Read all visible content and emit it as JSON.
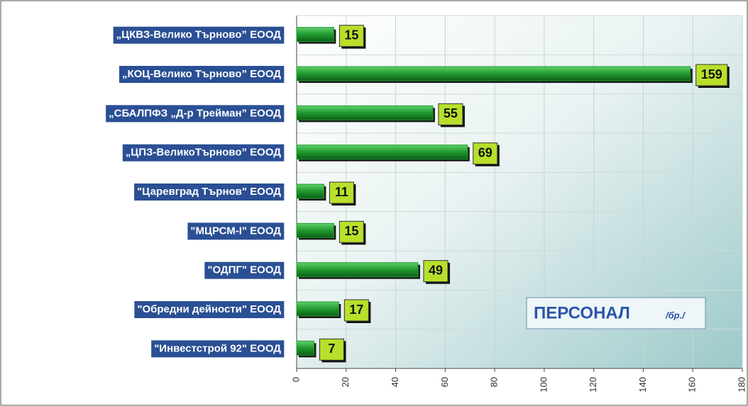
{
  "chart_data": {
    "type": "bar",
    "orientation": "horizontal",
    "title": "ПЕРСОНАЛ",
    "subtitle": "/бр./",
    "categories": [
      "„ЦКВЗ-Велико Търново” ЕООД",
      "„КОЦ-Велико Търново” ЕООД",
      "„СБАЛПФЗ „Д-р Трейман” ЕООД",
      "„ЦПЗ-ВеликоТърново” ЕООД",
      "\"Царевград Търнов\" ЕООД",
      "\"МЦРСМ-I\" ЕООД",
      "\"ОДПГ\" ЕООД",
      "\"Обредни дейности\" ЕООД",
      "\"Инвестстрой 92\" ЕООД"
    ],
    "values": [
      15,
      159,
      55,
      69,
      11,
      15,
      49,
      17,
      7
    ],
    "color": "#1f9a2e",
    "label_color": "#b8e02a",
    "category_label_color": "#2a4f94",
    "xlim": [
      0,
      180
    ],
    "xticks": [
      0,
      20,
      40,
      60,
      80,
      100,
      120,
      140,
      160,
      180
    ],
    "grid": true
  }
}
